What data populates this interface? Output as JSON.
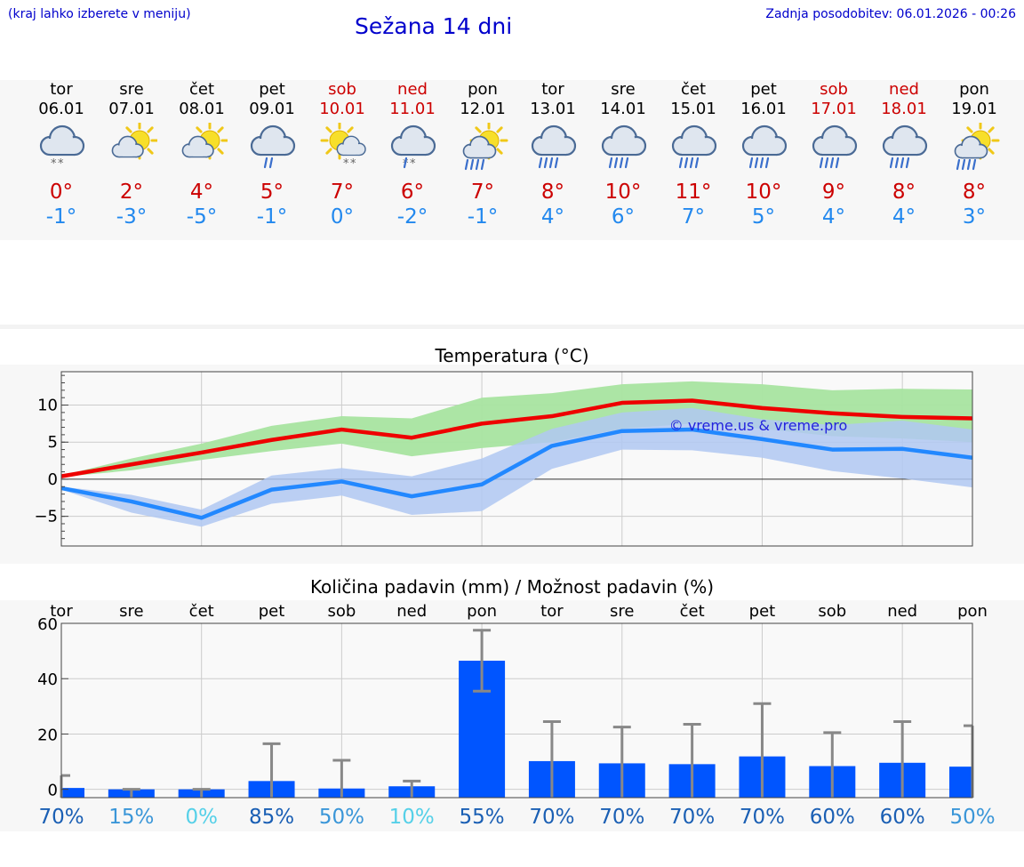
{
  "header": {
    "menu_hint": "(kraj lahko izberete v meniju)",
    "title": "Sežana 14 dni",
    "updated": "Zadnja posodobitev: 06.01.2026 - 00:26"
  },
  "days": [
    {
      "name": "tor",
      "date": "06.01",
      "weekend": false,
      "icon": "cloud-snow-icon",
      "tmax": "0°",
      "tmin": "-1°"
    },
    {
      "name": "sre",
      "date": "07.01",
      "weekend": false,
      "icon": "sun-cloud-icon",
      "tmax": "2°",
      "tmin": "-3°"
    },
    {
      "name": "čet",
      "date": "08.01",
      "weekend": false,
      "icon": "sun-cloud-icon",
      "tmax": "4°",
      "tmin": "-5°"
    },
    {
      "name": "pet",
      "date": "09.01",
      "weekend": false,
      "icon": "cloud-rain-icon",
      "tmax": "5°",
      "tmin": "-1°"
    },
    {
      "name": "sob",
      "date": "10.01",
      "weekend": true,
      "icon": "sun-cloud-snow-icon",
      "tmax": "7°",
      "tmin": "0°"
    },
    {
      "name": "ned",
      "date": "11.01",
      "weekend": true,
      "icon": "cloud-sleet-icon",
      "tmax": "6°",
      "tmin": "-2°"
    },
    {
      "name": "pon",
      "date": "12.01",
      "weekend": false,
      "icon": "sun-cloud-heavy-rain-icon",
      "tmax": "7°",
      "tmin": "-1°"
    },
    {
      "name": "tor",
      "date": "13.01",
      "weekend": false,
      "icon": "cloud-heavy-rain-icon",
      "tmax": "8°",
      "tmin": "4°"
    },
    {
      "name": "sre",
      "date": "14.01",
      "weekend": false,
      "icon": "cloud-heavy-rain-icon",
      "tmax": "10°",
      "tmin": "6°"
    },
    {
      "name": "čet",
      "date": "15.01",
      "weekend": false,
      "icon": "cloud-heavy-rain-icon",
      "tmax": "11°",
      "tmin": "7°"
    },
    {
      "name": "pet",
      "date": "16.01",
      "weekend": false,
      "icon": "cloud-heavy-rain-icon",
      "tmax": "10°",
      "tmin": "5°"
    },
    {
      "name": "sob",
      "date": "17.01",
      "weekend": true,
      "icon": "cloud-heavy-rain-icon",
      "tmax": "9°",
      "tmin": "4°"
    },
    {
      "name": "ned",
      "date": "18.01",
      "weekend": true,
      "icon": "cloud-heavy-rain-icon",
      "tmax": "8°",
      "tmin": "4°"
    },
    {
      "name": "pon",
      "date": "19.01",
      "weekend": false,
      "icon": "sun-cloud-heavy-rain-icon",
      "tmax": "8°",
      "tmin": "3°"
    }
  ],
  "colors": {
    "title_blue": "#0000cc",
    "weekend_red": "#cc0000",
    "tmax_red": "#cc0000",
    "tmin_blue": "#2288ee",
    "max_line": "#ee0000",
    "min_line": "#2288ff",
    "max_band": "#a8e4a0",
    "min_band": "#b0c8f2",
    "bar": "#0055ff",
    "error": "#888888"
  },
  "chart_data": [
    {
      "type": "line",
      "title": "Temperatura (°C)",
      "ylim": [
        -9,
        14.5
      ],
      "yticks": [
        -5,
        0,
        5,
        10
      ],
      "ytick_labels": [
        "−5",
        "0",
        "5",
        "10"
      ],
      "x": [
        0,
        1,
        2,
        3,
        4,
        5,
        6,
        7,
        8,
        9,
        10,
        11,
        12,
        13
      ],
      "watermark": "© vreme.us & vreme.pro",
      "series": [
        {
          "name": "max",
          "values": [
            0.4,
            2.0,
            3.6,
            5.3,
            6.7,
            5.6,
            7.5,
            8.5,
            10.3,
            10.6,
            9.6,
            8.9,
            8.4,
            8.2
          ],
          "band_low": [
            0.3,
            1.2,
            2.6,
            3.8,
            4.8,
            3.1,
            4.2,
            5.0,
            6.8,
            7.5,
            6.8,
            5.8,
            5.5,
            5.0
          ],
          "band_high": [
            0.5,
            2.8,
            4.8,
            7.2,
            8.5,
            8.2,
            11.0,
            11.6,
            12.8,
            13.2,
            12.8,
            12.0,
            12.2,
            12.1
          ]
        },
        {
          "name": "min",
          "values": [
            -1.2,
            -3.0,
            -5.2,
            -1.4,
            -0.3,
            -2.3,
            -0.7,
            4.5,
            6.5,
            6.7,
            5.4,
            4.0,
            4.1,
            2.9
          ],
          "band_low": [
            -1.4,
            -4.5,
            -6.4,
            -3.3,
            -2.2,
            -4.8,
            -4.3,
            1.4,
            4.0,
            3.9,
            2.9,
            1.1,
            0.1,
            -1.1
          ],
          "band_high": [
            -1.0,
            -2.1,
            -4.1,
            0.5,
            1.5,
            0.4,
            2.8,
            6.8,
            9.0,
            9.6,
            8.1,
            7.3,
            7.9,
            6.7
          ]
        }
      ]
    },
    {
      "type": "bar",
      "title": "Količina padavin (mm) / Možnost padavin (%)",
      "ylim": [
        -3,
        60
      ],
      "yticks": [
        0,
        20,
        40,
        60
      ],
      "ytick_labels": [
        "0",
        "20",
        "40",
        "60"
      ],
      "categories": [
        "tor",
        "sre",
        "čet",
        "pet",
        "sob",
        "ned",
        "pon",
        "tor",
        "sre",
        "čet",
        "pet",
        "sob",
        "ned",
        "pon"
      ],
      "values": [
        0.5,
        0.0,
        0.0,
        3.0,
        0.3,
        1.1,
        46.5,
        10.2,
        9.4,
        9.1,
        11.9,
        8.4,
        9.6,
        8.2
      ],
      "error_high": [
        5.0,
        0.0,
        0.0,
        16.5,
        10.5,
        3.0,
        57.5,
        24.5,
        22.5,
        23.5,
        31.0,
        20.5,
        24.5,
        23.0
      ],
      "error_low": [
        0.0,
        0.0,
        0.0,
        0.0,
        0.0,
        0.0,
        35.5,
        0.0,
        0.0,
        0.0,
        0.0,
        0.0,
        0.0,
        0.0
      ],
      "probabilities": [
        "70%",
        "15%",
        "0%",
        "85%",
        "50%",
        "10%",
        "55%",
        "70%",
        "70%",
        "70%",
        "70%",
        "60%",
        "60%",
        "50%"
      ],
      "probability_values": [
        70,
        15,
        0,
        85,
        50,
        10,
        55,
        70,
        70,
        70,
        70,
        60,
        60,
        50
      ]
    }
  ]
}
